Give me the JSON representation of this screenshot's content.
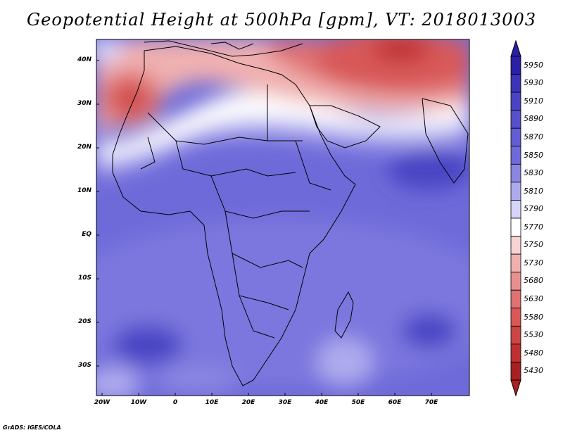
{
  "title": "Geopotential Height at 500hPa [gpm], VT: 2018013003",
  "footer": "GrADS: IGES/COLA",
  "map": {
    "lat_labels": [
      "40N",
      "30N",
      "20N",
      "10N",
      "EQ",
      "10S",
      "20S",
      "30S"
    ],
    "lon_labels": [
      "20W",
      "10W",
      "0",
      "10E",
      "20E",
      "30E",
      "40E",
      "50E",
      "60E",
      "70E"
    ]
  },
  "colorbar": {
    "levels": [
      "5950",
      "5930",
      "5910",
      "5890",
      "5870",
      "5850",
      "5830",
      "5810",
      "5790",
      "5770",
      "5750",
      "5730",
      "5680",
      "5630",
      "5580",
      "5530",
      "5480",
      "5430"
    ],
    "colors": [
      "#2a1fa6",
      "#3b34b8",
      "#4a44c4",
      "#5650cc",
      "#625dd3",
      "#6e6ad9",
      "#8a86e2",
      "#aeaaee",
      "#d6d4f8",
      "#ffffff",
      "#f7d3d3",
      "#f0b0b0",
      "#e89090",
      "#e07272",
      "#d85858",
      "#cc4444",
      "#c03030",
      "#a82020"
    ]
  }
}
